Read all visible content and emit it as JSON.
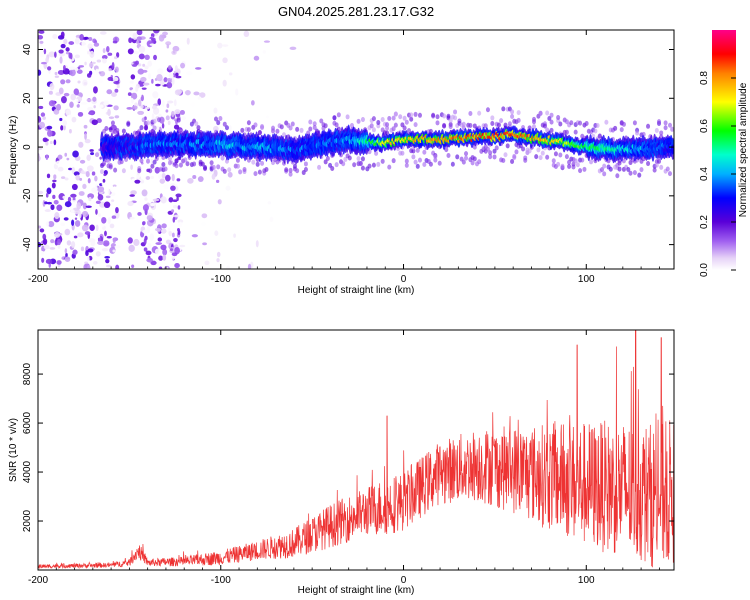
{
  "title": "GN04.2025.281.23.17.G32",
  "colors": {
    "line": "#ee3333",
    "frame": "#000000",
    "background": "#ffffff"
  },
  "chart_data": [
    {
      "type": "heatmap",
      "name": "spectrogram",
      "title": "GN04.2025.281.23.17.G32",
      "xlabel": "Height of straight line (km)",
      "ylabel": "Frequency (Hz)",
      "xlim": [
        -200,
        148
      ],
      "ylim": [
        -50,
        48
      ],
      "xticks": [
        -200,
        -100,
        0,
        100
      ],
      "xtick_labels": [
        "-200",
        "-100",
        "0",
        "100"
      ],
      "yticks": [
        -40,
        -20,
        0,
        20,
        40
      ],
      "ytick_labels": [
        "-40",
        "-20",
        "0",
        "20",
        "40"
      ],
      "ridge": {
        "description": "frequency of the strongest spectral ridge vs height",
        "x": [
          -163,
          -150,
          -140,
          -120,
          -100,
          -80,
          -60,
          -40,
          -30,
          -20,
          -10,
          0,
          20,
          40,
          60,
          80,
          100,
          120,
          140,
          148
        ],
        "freq": [
          0,
          0,
          1,
          1,
          1,
          0,
          -1,
          2,
          3,
          2,
          2,
          3,
          3,
          4,
          5,
          3,
          0,
          -1,
          0,
          0
        ],
        "amplitude": [
          0.25,
          0.3,
          0.35,
          0.35,
          0.4,
          0.4,
          0.35,
          0.35,
          0.4,
          0.5,
          0.7,
          0.75,
          0.8,
          0.85,
          0.85,
          0.75,
          0.55,
          0.45,
          0.35,
          0.3
        ]
      },
      "colorbar": {
        "label": "Normalized spectral amplitude",
        "range": [
          0.0,
          1.0
        ],
        "ticks": [
          0.0,
          0.2,
          0.4,
          0.6,
          0.8
        ],
        "tick_labels": [
          "0.0",
          "0.2",
          "0.4",
          "0.6",
          "0.8"
        ]
      }
    },
    {
      "type": "line",
      "name": "snr",
      "xlabel": "Height of straight line (km)",
      "ylabel": "SNR (10 * v/v)",
      "xlim": [
        -200,
        148
      ],
      "ylim": [
        0,
        9800
      ],
      "xticks": [
        -200,
        -100,
        0,
        100
      ],
      "xtick_labels": [
        "-200",
        "-100",
        "0",
        "100"
      ],
      "yticks": [
        2000,
        4000,
        6000,
        8000
      ],
      "ytick_labels": [
        "2000",
        "4000",
        "6000",
        "8000"
      ],
      "envelope": {
        "x": [
          -200,
          -160,
          -150,
          -145,
          -140,
          -120,
          -100,
          -80,
          -60,
          -40,
          -20,
          -10,
          0,
          20,
          40,
          60,
          80,
          100,
          120,
          140,
          148
        ],
        "mean": [
          150,
          200,
          300,
          800,
          300,
          350,
          500,
          800,
          1100,
          1800,
          2400,
          2600,
          2800,
          4000,
          4300,
          4100,
          3800,
          3500,
          3300,
          3000,
          3200
        ],
        "spread": [
          80,
          100,
          150,
          350,
          150,
          200,
          300,
          400,
          600,
          900,
          1000,
          1200,
          1200,
          1300,
          1500,
          1800,
          2200,
          2600,
          2800,
          3000,
          3000
        ]
      },
      "peaks": [
        {
          "x": -9,
          "y": 6300
        },
        {
          "x": 95,
          "y": 9200
        },
        {
          "x": 127,
          "y": 9800
        },
        {
          "x": 141,
          "y": 9500
        }
      ]
    }
  ]
}
